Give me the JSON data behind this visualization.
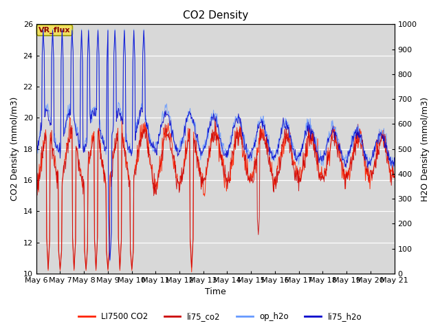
{
  "title": "CO2 Density",
  "xlabel": "Time",
  "ylabel_left": "CO2 Density (mmol/m3)",
  "ylabel_right": "H2O Density (mmol/m3)",
  "ylim_left": [
    10,
    26
  ],
  "ylim_right": [
    0,
    1000
  ],
  "yticks_left": [
    10,
    12,
    14,
    16,
    18,
    20,
    22,
    24,
    26
  ],
  "yticks_right": [
    0,
    100,
    200,
    300,
    400,
    500,
    600,
    700,
    800,
    900,
    1000
  ],
  "x_tick_labels": [
    "May 6",
    "May 7",
    "May 8",
    "May 9",
    "May 10",
    "May 11",
    "May 12",
    "May 13",
    "May 14",
    "May 15",
    "May 16",
    "May 17",
    "May 18",
    "May 19",
    "May 20",
    "May 21"
  ],
  "vr_flux_label": "VR_flux",
  "background_color": "#d8d8d8",
  "legend_entries": [
    "LI7500 CO2",
    "li75_co2",
    "op_h2o",
    "li75_h2o"
  ],
  "li7500_color": "#ff2200",
  "li75_co2_color": "#cc0000",
  "op_h2o_color": "#6699ff",
  "li75_h2o_color": "#0000cc",
  "vr_box_facecolor": "#f0e060",
  "vr_box_edgecolor": "#999900",
  "vr_text_color": "#8B0000",
  "grid_color": "white",
  "tick_fontsize": 8,
  "label_fontsize": 9,
  "title_fontsize": 11
}
